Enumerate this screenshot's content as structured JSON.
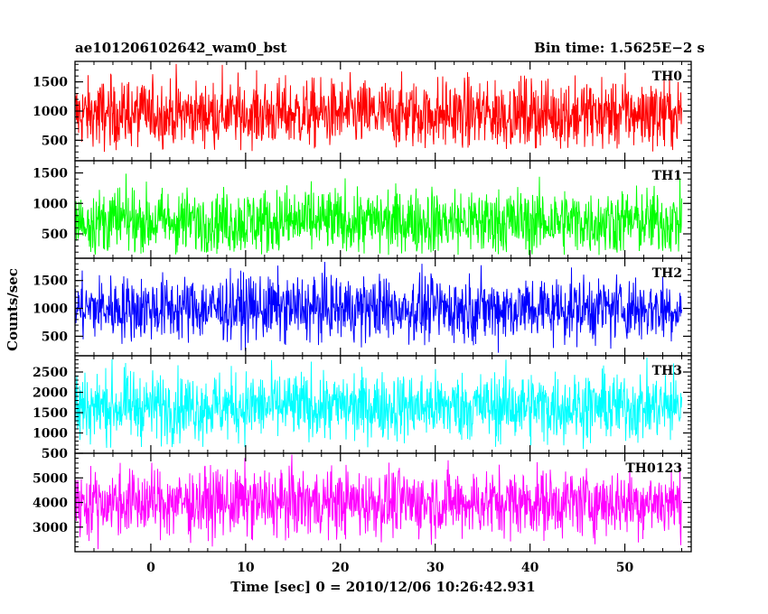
{
  "chart_data": {
    "type": "line",
    "title_left": "ae101206102642_wam0_bst",
    "title_right": "Bin time: 1.5625E−2 s",
    "xlabel": "Time [sec] 0 = 2010/12/06 10:26:42.931",
    "ylabel": "Counts/sec",
    "xlim": [
      -8,
      57
    ],
    "x_ticks": [
      0,
      10,
      20,
      30,
      40,
      50
    ],
    "x_data_range": [
      -8,
      56
    ],
    "bin_time": 0.015625,
    "panels": [
      {
        "name": "TH0",
        "color": "#ff0000",
        "ylim": [
          150,
          1850
        ],
        "yticks": [
          500,
          1000,
          1500
        ],
        "mean": 950,
        "spread": 290,
        "min": 300,
        "max": 1850
      },
      {
        "name": "TH1",
        "color": "#00ff00",
        "ylim": [
          100,
          1700
        ],
        "yticks": [
          500,
          1000,
          1500
        ],
        "mean": 700,
        "spread": 270,
        "min": 150,
        "max": 1650
      },
      {
        "name": "TH2",
        "color": "#0000ff",
        "ylim": [
          150,
          1900
        ],
        "yticks": [
          500,
          1000,
          1500
        ],
        "mean": 1000,
        "spread": 290,
        "min": 200,
        "max": 1850
      },
      {
        "name": "TH3",
        "color": "#00ffff",
        "ylim": [
          500,
          2900
        ],
        "yticks": [
          500,
          1000,
          1500,
          2000,
          2500
        ],
        "mean": 1650,
        "spread": 420,
        "min": 600,
        "max": 2900
      },
      {
        "name": "TH0123",
        "color": "#ff00ff",
        "ylim": [
          2000,
          6000
        ],
        "yticks": [
          3000,
          4000,
          5000
        ],
        "mean": 4000,
        "spread": 680,
        "min": 2100,
        "max": 5950
      }
    ]
  }
}
